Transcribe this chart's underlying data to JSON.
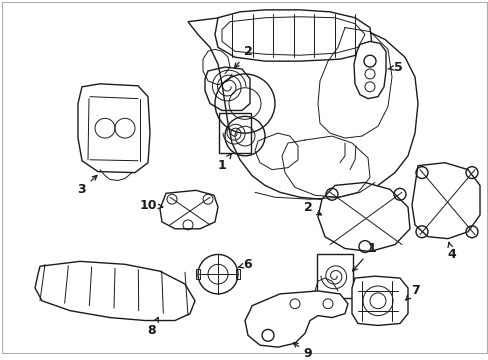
{
  "bg_color": "#ffffff",
  "line_color": "#1a1a1a",
  "figsize": [
    4.89,
    3.6
  ],
  "dpi": 100,
  "border_color": "#cccccc"
}
